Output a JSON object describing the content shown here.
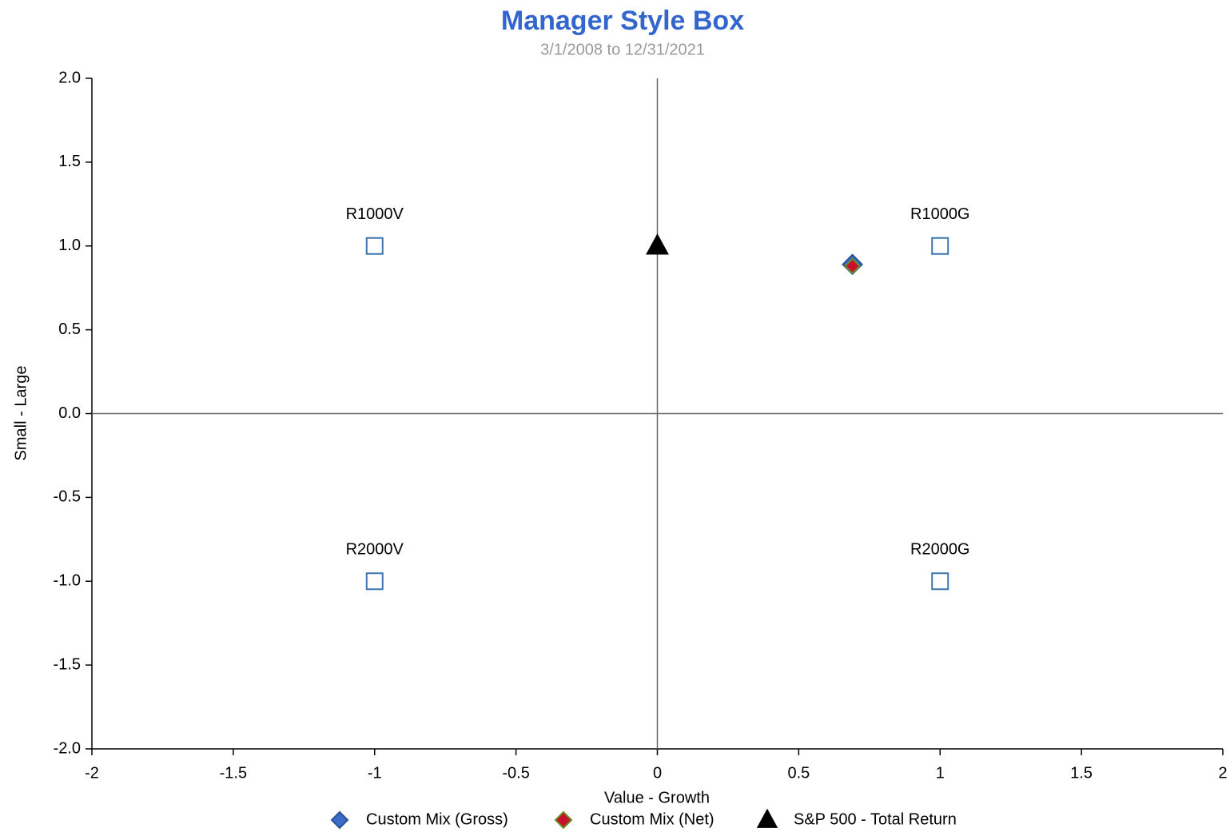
{
  "chart_data": {
    "type": "scatter",
    "title": "Manager Style Box",
    "subtitle": "3/1/2008 to 12/31/2021",
    "x_label": "Value - Growth",
    "y_label": "Small - Large",
    "xlim": [
      -2,
      2
    ],
    "ylim": [
      -2,
      2
    ],
    "xticks": [
      -2,
      -1.5,
      -1,
      -0.5,
      0,
      0.5,
      1,
      1.5,
      2
    ],
    "yticks": [
      {
        "value": 2,
        "label": "2.0"
      },
      {
        "value": 1.5,
        "label": "1.5"
      },
      {
        "value": 1,
        "label": "1.0"
      },
      0.5,
      {
        "value": 0,
        "label": "0.0"
      },
      -0.5,
      {
        "value": -1,
        "label": "-1.0"
      },
      {
        "value": -1.5,
        "label": "-1.5"
      },
      {
        "value": -2,
        "label": "-2.0"
      }
    ],
    "reference_points": [
      {
        "label": "R1000V",
        "x": -1,
        "y": 1
      },
      {
        "label": "R1000G",
        "x": 1,
        "y": 1
      },
      {
        "label": "R2000V",
        "x": -1,
        "y": -1
      },
      {
        "label": "R2000G",
        "x": 1,
        "y": -1
      }
    ],
    "reference_color": "#3a75b0",
    "series": [
      {
        "name": "Custom Mix (Gross)",
        "marker": "diamond",
        "color": "#3a6cc8",
        "x": [
          0.69
        ],
        "values": [
          0.89
        ]
      },
      {
        "name": "Custom Mix (Net)",
        "marker": "diamond",
        "color": "#c8102e",
        "x": [
          0.69
        ],
        "values": [
          0.88
        ]
      },
      {
        "name": "S&P 500 - Total Return",
        "marker": "triangle",
        "color": "#000000",
        "x": [
          0
        ],
        "values": [
          1.0
        ]
      }
    ]
  }
}
